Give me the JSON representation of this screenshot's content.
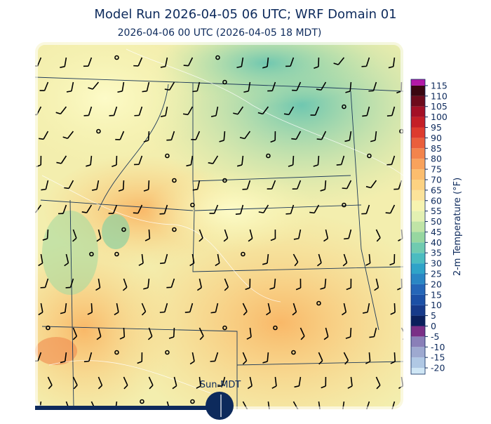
{
  "header": {
    "title": "Model Run 2026-04-05 06 UTC; WRF Domain 01",
    "subtitle": "2026-04-06 00 UTC  (2026-04-05 18 MDT)"
  },
  "colorbar": {
    "label": "2-m Temperature (°F)",
    "lim": [
      -23,
      118
    ],
    "ticks": [
      -20,
      -15,
      -10,
      -5,
      0,
      5,
      10,
      15,
      20,
      25,
      30,
      35,
      40,
      45,
      50,
      55,
      60,
      65,
      70,
      75,
      80,
      85,
      90,
      95,
      100,
      105,
      110,
      115
    ],
    "band_start": -25,
    "band_width": 5,
    "colors": [
      "#cfe6f5",
      "#b0c8e4",
      "#9ea9d0",
      "#8a7fb8",
      "#7a2f86",
      "#0b1f5c",
      "#173a8a",
      "#1c50a6",
      "#2566b8",
      "#2a86c4",
      "#2fa3c8",
      "#4bbcc0",
      "#70cbb0",
      "#97d7a0",
      "#c0e4a6",
      "#e3f0b2",
      "#f6f3b0",
      "#fbe39a",
      "#fcd282",
      "#fbbd6e",
      "#f8a25c",
      "#f3844c",
      "#ea5f3c",
      "#dd3b2e",
      "#c41f27",
      "#a31026",
      "#6d0b1c",
      "#3a0711",
      "#b21aa6",
      "#e01ad0"
    ]
  },
  "timeline": {
    "label": "Sun-MDT"
  }
}
